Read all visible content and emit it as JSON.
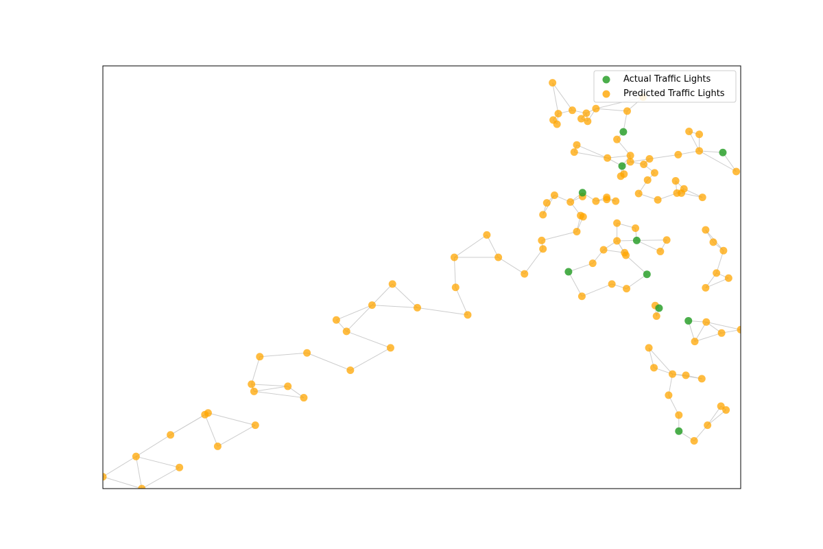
{
  "chart_data": {
    "type": "scatter",
    "xlim": [
      0,
      1000
    ],
    "ylim": [
      0,
      1000
    ],
    "grid": false,
    "axes_visible": false,
    "legend_position": "top-right",
    "edge_color": "#cccccc",
    "legend": [
      {
        "label": "Actual Traffic Lights",
        "color": "#2ca02c",
        "marker": "circle"
      },
      {
        "label": "Predicted Traffic Lights",
        "color": "#ffa500",
        "marker": "circle"
      }
    ],
    "series": [
      {
        "name": "Actual Traffic Lights",
        "color": "#2ca02c",
        "opacity": 0.85,
        "points": [
          [
            752,
            700
          ],
          [
            816,
            844
          ],
          [
            814,
            763
          ],
          [
            837,
            587
          ],
          [
            853,
            507
          ],
          [
            872,
            427
          ],
          [
            918,
            397
          ],
          [
            903,
            136
          ],
          [
            972,
            795
          ],
          [
            730,
            513
          ]
        ]
      },
      {
        "name": "Predicted Traffic Lights",
        "color": "#ffa500",
        "opacity": 0.75,
        "points": [
          [
            0,
            28
          ],
          [
            52,
            76
          ],
          [
            106,
            127
          ],
          [
            160,
            175
          ],
          [
            165,
            179
          ],
          [
            233,
            247
          ],
          [
            237,
            230
          ],
          [
            320,
            321
          ],
          [
            290,
            242
          ],
          [
            366,
            399
          ],
          [
            422,
            434
          ],
          [
            454,
            484
          ],
          [
            551,
            547
          ],
          [
            602,
            600
          ],
          [
            690,
            648
          ],
          [
            749,
            646
          ],
          [
            773,
            680
          ],
          [
            817,
            744
          ],
          [
            902,
            790
          ],
          [
            61,
            0
          ],
          [
            120,
            50
          ],
          [
            180,
            100
          ],
          [
            239,
            150
          ],
          [
            315,
            215
          ],
          [
            388,
            280
          ],
          [
            451,
            333
          ],
          [
            572,
            411
          ],
          [
            661,
            508
          ],
          [
            743,
            608
          ],
          [
            804,
            680
          ],
          [
            865,
            747
          ],
          [
            935,
            799
          ],
          [
            246,
            312
          ],
          [
            382,
            372
          ],
          [
            493,
            428
          ],
          [
            553,
            476
          ],
          [
            620,
            547
          ],
          [
            688,
            587
          ],
          [
            696,
            676
          ],
          [
            733,
            678
          ],
          [
            790,
            684
          ],
          [
            806,
            628
          ],
          [
            854,
            730
          ],
          [
            785,
            565
          ],
          [
            835,
            616
          ],
          [
            820,
            552
          ],
          [
            690,
            567
          ],
          [
            753,
            643
          ],
          [
            790,
            689
          ],
          [
            705,
            960
          ],
          [
            712,
            862
          ],
          [
            714,
            887
          ],
          [
            758,
            888
          ],
          [
            760,
            869
          ],
          [
            773,
            899
          ],
          [
            822,
            893
          ],
          [
            847,
            926
          ],
          [
            857,
            780
          ],
          [
            935,
            838
          ],
          [
            940,
            689
          ],
          [
            993,
            750
          ],
          [
            743,
            813
          ],
          [
            739,
            796
          ],
          [
            791,
            782
          ],
          [
            812,
            739
          ],
          [
            827,
            788
          ],
          [
            840,
            698
          ],
          [
            848,
            767
          ],
          [
            898,
            728
          ],
          [
            945,
            612
          ],
          [
            957,
            583
          ],
          [
            981,
            498
          ],
          [
            973,
            563
          ],
          [
            1000,
            376
          ],
          [
            962,
            510
          ],
          [
            945,
            475
          ],
          [
            874,
            561
          ],
          [
            884,
            588
          ],
          [
            900,
            699
          ],
          [
            821,
            473
          ],
          [
            868,
            408
          ],
          [
            893,
            271
          ],
          [
            914,
            268
          ],
          [
            939,
            260
          ],
          [
            977,
            186
          ],
          [
            928,
            348
          ],
          [
            946,
            394
          ],
          [
            970,
            368
          ],
          [
            866,
            433
          ],
          [
            856,
            333
          ],
          [
            864,
            286
          ],
          [
            887,
            221
          ],
          [
            903,
            174
          ],
          [
            927,
            113
          ],
          [
            948,
            150
          ],
          [
            969,
            195
          ],
          [
            818,
            558
          ],
          [
            798,
            484
          ],
          [
            751,
            455
          ],
          [
            768,
            533
          ],
          [
            708,
            694
          ],
          [
            806,
            586
          ],
          [
            752,
            691
          ],
          [
            706,
            872
          ],
          [
            736,
            895
          ],
          [
            750,
            875
          ],
          [
            806,
            826
          ],
          [
            827,
            773
          ],
          [
            870,
            683
          ],
          [
            907,
            699
          ],
          [
            911,
            709
          ],
          [
            919,
            845
          ]
        ]
      }
    ]
  }
}
